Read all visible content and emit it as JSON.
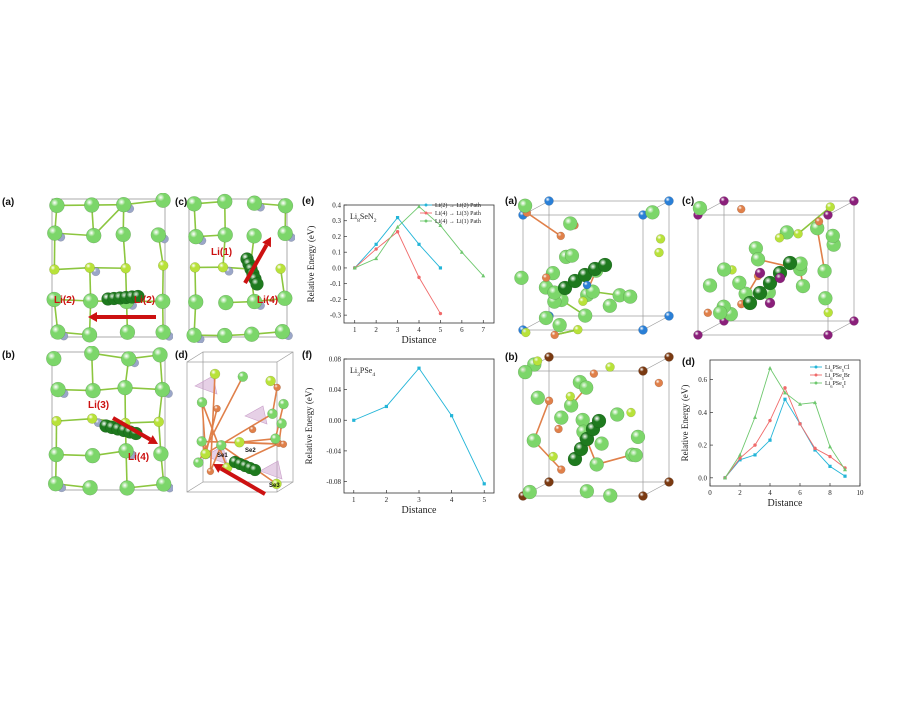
{
  "colors": {
    "li_light": "#7cd66a",
    "li_dark": "#1e7a1e",
    "li_yellow": "#b8e23a",
    "n_blue": "#9aa6c8",
    "arrow": "#cc1111",
    "se_orange": "#e0804a",
    "cl_blue": "#2a7fd6",
    "br_brown": "#7a3a12",
    "i_purple": "#8a1f7a",
    "series_cyan": "#23b5d8",
    "series_red": "#f06a6a",
    "series_green": "#6ec86e"
  },
  "panels": {
    "left_a": {
      "label": "(a)",
      "atoms": [
        "Li(2)",
        "Li(2)"
      ]
    },
    "left_b": {
      "label": "(b)",
      "atoms": [
        "Li(3)",
        "Li(4)"
      ]
    },
    "left_c": {
      "label": "(c)",
      "atoms": [
        "Li(1)",
        "Li(4)"
      ]
    },
    "left_d": {
      "label": "(d)",
      "atoms": [
        "Se1",
        "Se2",
        "Se3"
      ]
    },
    "right_a": {
      "label": "(a)"
    },
    "right_b": {
      "label": "(b)"
    },
    "right_c": {
      "label": "(c)"
    }
  },
  "chart_data": [
    {
      "id": "e",
      "panel_label": "(e)",
      "type": "line",
      "annotation": "Li8SeN2",
      "xlabel": "Distance",
      "ylabel": "Relative Energy (eV)",
      "xlim": [
        0.5,
        7.5
      ],
      "ylim": [
        -0.35,
        0.4
      ],
      "xticks": [
        1,
        2,
        3,
        4,
        5,
        6,
        7
      ],
      "yticks": [
        -0.3,
        -0.2,
        -0.1,
        0.0,
        0.1,
        0.2,
        0.3,
        0.4
      ],
      "ytick_labels": [
        "-0.3",
        "-0.2",
        "-0.1",
        "0.0",
        "0.1",
        "0.2",
        "0.3",
        "0.4"
      ],
      "legend_position": "top-right",
      "series": [
        {
          "name": "Li(2) → Li(2) Path",
          "color": "#23b5d8",
          "x": [
            1,
            2,
            3,
            4,
            5
          ],
          "y": [
            0.0,
            0.15,
            0.32,
            0.15,
            0.0
          ]
        },
        {
          "name": "Li(4) → Li(3) Path",
          "color": "#f06a6a",
          "x": [
            1,
            2,
            3,
            4,
            5
          ],
          "y": [
            0.0,
            0.12,
            0.23,
            -0.06,
            -0.29
          ]
        },
        {
          "name": "Li(4) → Li(1) Path",
          "color": "#6ec86e",
          "x": [
            1,
            2,
            3,
            4,
            5,
            6,
            7
          ],
          "y": [
            0.0,
            0.06,
            0.26,
            0.39,
            0.27,
            0.1,
            -0.05
          ]
        }
      ]
    },
    {
      "id": "f",
      "panel_label": "(f)",
      "type": "line",
      "annotation": "Li3PSe4",
      "xlabel": "Distance",
      "ylabel": "Relative Energy (eV)",
      "xlim": [
        0.7,
        5.3
      ],
      "ylim": [
        -0.095,
        0.08
      ],
      "xticks": [
        1,
        2,
        3,
        4,
        5
      ],
      "yticks": [
        -0.08,
        -0.04,
        0.0,
        0.04,
        0.08
      ],
      "ytick_labels": [
        "-0.08",
        "-0.04",
        "0.00",
        "0.04",
        "0.08"
      ],
      "series": [
        {
          "name": "",
          "color": "#23b5d8",
          "x": [
            1,
            2,
            3,
            4,
            5
          ],
          "y": [
            0.0,
            0.018,
            0.068,
            0.006,
            -0.083
          ]
        }
      ]
    },
    {
      "id": "d",
      "panel_label": "(d)",
      "type": "line",
      "xlabel": "Distance",
      "ylabel": "Relative Energy (eV)",
      "xlim": [
        0,
        10
      ],
      "ylim": [
        -0.05,
        0.72
      ],
      "xticks": [
        0,
        2,
        4,
        6,
        8,
        10
      ],
      "yticks": [
        0.0,
        0.2,
        0.4,
        0.6
      ],
      "ytick_labels": [
        "0.0",
        "0.2",
        "0.4",
        "0.6"
      ],
      "legend_position": "top-right",
      "series": [
        {
          "name": "Li6PSe5Cl",
          "color": "#23b5d8",
          "x": [
            1,
            2,
            3,
            4,
            5,
            6,
            7,
            8,
            9
          ],
          "y": [
            0.0,
            0.11,
            0.14,
            0.23,
            0.48,
            0.33,
            0.17,
            0.07,
            0.01
          ]
        },
        {
          "name": "Li6PSe5Br",
          "color": "#f06a6a",
          "x": [
            1,
            2,
            3,
            4,
            5,
            6,
            7,
            8,
            9
          ],
          "y": [
            0.0,
            0.12,
            0.2,
            0.35,
            0.55,
            0.33,
            0.18,
            0.13,
            0.06
          ]
        },
        {
          "name": "Li6PSe5I",
          "color": "#6ec86e",
          "x": [
            1,
            2,
            3,
            4,
            5,
            6,
            7,
            8,
            9
          ],
          "y": [
            0.0,
            0.14,
            0.37,
            0.67,
            0.52,
            0.45,
            0.46,
            0.19,
            0.05
          ]
        }
      ]
    }
  ]
}
